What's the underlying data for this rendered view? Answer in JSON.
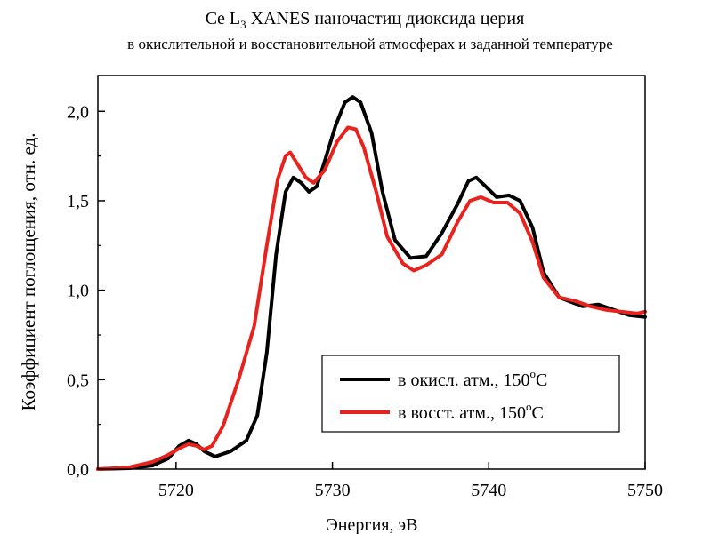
{
  "chart_data": {
    "type": "line",
    "title_prefix": "Ce L",
    "title_subscript": "3",
    "title_suffix": " XANES наночастиц диоксида церия",
    "subtitle": "в окислительной и восстановительной атмосферах и заданной температуре",
    "xlabel": "Энергия, эВ",
    "ylabel": "Коэффициент поглощения, отн. ед.",
    "xlim": [
      5715,
      5750
    ],
    "ylim": [
      0,
      2.2
    ],
    "x_ticks": [
      5720,
      5730,
      5740,
      5750
    ],
    "x_tick_labels": [
      "5720",
      "5730",
      "5740",
      "5750"
    ],
    "y_ticks": [
      0,
      0.5,
      1.0,
      1.5,
      2.0
    ],
    "y_tick_labels": [
      "0,0",
      "0,5",
      "1,0",
      "1,5",
      "2,0"
    ],
    "grid": false,
    "legend_position": "bottom-right",
    "series": [
      {
        "name": "в окисл. атм., 150°С",
        "legend_text": "в окисл. атм., 150",
        "legend_sup": "o",
        "legend_unit": "C",
        "color": "#000000",
        "points": [
          [
            5715,
            0.0
          ],
          [
            5717,
            0.005
          ],
          [
            5718.5,
            0.02
          ],
          [
            5719.5,
            0.06
          ],
          [
            5720.2,
            0.13
          ],
          [
            5720.8,
            0.16
          ],
          [
            5721.3,
            0.14
          ],
          [
            5721.8,
            0.1
          ],
          [
            5722.5,
            0.07
          ],
          [
            5723.5,
            0.1
          ],
          [
            5724.5,
            0.16
          ],
          [
            5725.2,
            0.3
          ],
          [
            5725.8,
            0.65
          ],
          [
            5726.4,
            1.2
          ],
          [
            5727.0,
            1.55
          ],
          [
            5727.5,
            1.63
          ],
          [
            5728.0,
            1.6
          ],
          [
            5728.5,
            1.55
          ],
          [
            5729.0,
            1.58
          ],
          [
            5729.5,
            1.72
          ],
          [
            5730.2,
            1.92
          ],
          [
            5730.8,
            2.05
          ],
          [
            5731.3,
            2.08
          ],
          [
            5731.8,
            2.05
          ],
          [
            5732.5,
            1.88
          ],
          [
            5733.2,
            1.55
          ],
          [
            5734.0,
            1.28
          ],
          [
            5735.0,
            1.18
          ],
          [
            5736.0,
            1.19
          ],
          [
            5737.0,
            1.32
          ],
          [
            5738.0,
            1.48
          ],
          [
            5738.7,
            1.61
          ],
          [
            5739.2,
            1.63
          ],
          [
            5739.8,
            1.58
          ],
          [
            5740.5,
            1.52
          ],
          [
            5741.3,
            1.53
          ],
          [
            5742.0,
            1.5
          ],
          [
            5742.8,
            1.35
          ],
          [
            5743.5,
            1.1
          ],
          [
            5744.5,
            0.96
          ],
          [
            5746.0,
            0.91
          ],
          [
            5747.0,
            0.92
          ],
          [
            5748.0,
            0.89
          ],
          [
            5749.0,
            0.86
          ],
          [
            5750.0,
            0.85
          ]
        ]
      },
      {
        "name": "в восст. атм., 150°С",
        "legend_text": "в восст. атм., 150",
        "legend_sup": "o",
        "legend_unit": "C",
        "color": "#e8231d",
        "points": [
          [
            5715,
            0.0
          ],
          [
            5717,
            0.01
          ],
          [
            5718.5,
            0.04
          ],
          [
            5719.5,
            0.08
          ],
          [
            5720.3,
            0.12
          ],
          [
            5720.8,
            0.14
          ],
          [
            5721.3,
            0.13
          ],
          [
            5721.8,
            0.11
          ],
          [
            5722.3,
            0.13
          ],
          [
            5723.0,
            0.24
          ],
          [
            5724.0,
            0.5
          ],
          [
            5725.0,
            0.8
          ],
          [
            5725.8,
            1.25
          ],
          [
            5726.5,
            1.62
          ],
          [
            5727.0,
            1.75
          ],
          [
            5727.3,
            1.77
          ],
          [
            5727.8,
            1.7
          ],
          [
            5728.3,
            1.63
          ],
          [
            5728.8,
            1.6
          ],
          [
            5729.5,
            1.67
          ],
          [
            5730.3,
            1.83
          ],
          [
            5731.0,
            1.91
          ],
          [
            5731.5,
            1.9
          ],
          [
            5732.0,
            1.8
          ],
          [
            5732.8,
            1.55
          ],
          [
            5733.5,
            1.3
          ],
          [
            5734.5,
            1.15
          ],
          [
            5735.2,
            1.11
          ],
          [
            5736.0,
            1.14
          ],
          [
            5737.0,
            1.2
          ],
          [
            5738.0,
            1.38
          ],
          [
            5738.8,
            1.5
          ],
          [
            5739.5,
            1.52
          ],
          [
            5740.3,
            1.49
          ],
          [
            5741.2,
            1.49
          ],
          [
            5742.0,
            1.43
          ],
          [
            5742.8,
            1.27
          ],
          [
            5743.5,
            1.07
          ],
          [
            5744.5,
            0.96
          ],
          [
            5745.5,
            0.94
          ],
          [
            5746.5,
            0.91
          ],
          [
            5747.5,
            0.89
          ],
          [
            5748.5,
            0.88
          ],
          [
            5749.5,
            0.87
          ],
          [
            5750.0,
            0.88
          ]
        ]
      }
    ]
  }
}
